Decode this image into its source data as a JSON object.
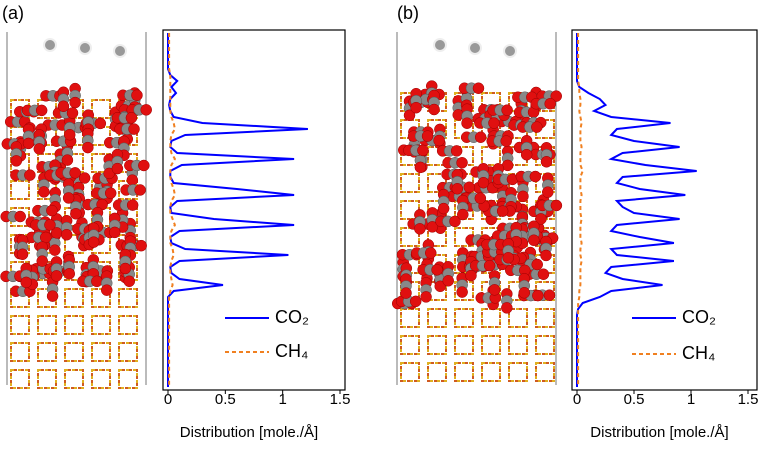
{
  "chart_data": [
    {
      "type": "line",
      "label": "(a)",
      "xlabel": "Distribution  [mole./Å]",
      "xlim": [
        0,
        1.5
      ],
      "xticks": [
        0,
        0.5,
        1,
        1.5
      ],
      "series": [
        {
          "name": "CO₂",
          "color": "#0000ff",
          "linestyle": "solid",
          "values": [
            0,
            0,
            0,
            0,
            0,
            0,
            0,
            0.02,
            0.08,
            0.03,
            0.07,
            0.02,
            0.01,
            0.02,
            0.05,
            0.3,
            1.22,
            0.15,
            0.03,
            0.02,
            0.08,
            1.1,
            0.12,
            0.02,
            0.02,
            0.05,
            0.6,
            1.1,
            0.08,
            0.02,
            0.03,
            0.4,
            1.1,
            0.1,
            0.02,
            0.03,
            0.15,
            1.05,
            0.1,
            0.02,
            0.03,
            0.1,
            0.48,
            0.05,
            0,
            0,
            0,
            0,
            0,
            0,
            0,
            0,
            0,
            0,
            0,
            0,
            0,
            0,
            0,
            0
          ]
        },
        {
          "name": "CH₄",
          "color": "#f08020",
          "linestyle": "dashed",
          "values": [
            0.01,
            0.01,
            0.01,
            0.01,
            0.01,
            0.01,
            0.01,
            0.02,
            0.02,
            0.02,
            0.02,
            0.02,
            0.02,
            0.02,
            0.03,
            0.05,
            0.06,
            0.03,
            0.02,
            0.02,
            0.03,
            0.06,
            0.03,
            0.02,
            0.02,
            0.03,
            0.05,
            0.06,
            0.03,
            0.02,
            0.02,
            0.04,
            0.06,
            0.03,
            0.02,
            0.02,
            0.04,
            0.05,
            0.03,
            0.02,
            0.02,
            0.03,
            0.04,
            0.02,
            0.01,
            0.01,
            0.01,
            0.01,
            0.01,
            0.01,
            0.01,
            0.01,
            0.01,
            0.01,
            0.01,
            0.01,
            0.01,
            0.01,
            0.01,
            0.01
          ]
        }
      ]
    },
    {
      "type": "line",
      "label": "(b)",
      "xlabel": "Distribution  [mole./Å]",
      "xlim": [
        0,
        1.5
      ],
      "xticks": [
        0,
        0.5,
        1,
        1.5
      ],
      "series": [
        {
          "name": "CO₂",
          "color": "#0000ff",
          "linestyle": "solid",
          "values": [
            0,
            0,
            0,
            0,
            0,
            0,
            0,
            0,
            0,
            0.02,
            0.1,
            0.2,
            0.25,
            0.15,
            0.3,
            0.82,
            0.35,
            0.3,
            0.5,
            0.9,
            0.4,
            0.3,
            0.6,
            1.05,
            0.4,
            0.35,
            0.55,
            0.95,
            0.35,
            0.4,
            0.5,
            0.9,
            0.35,
            0.3,
            0.55,
            0.85,
            0.3,
            0.35,
            0.85,
            0.3,
            0.25,
            0.4,
            0.75,
            0.3,
            0.2,
            0.05,
            0.01,
            0,
            0,
            0,
            0,
            0,
            0,
            0,
            0,
            0,
            0,
            0,
            0,
            0
          ]
        },
        {
          "name": "CH₄",
          "color": "#f08020",
          "linestyle": "dashed",
          "values": [
            0.01,
            0.01,
            0.01,
            0.01,
            0.01,
            0.01,
            0.01,
            0.01,
            0.01,
            0.02,
            0.02,
            0.03,
            0.03,
            0.02,
            0.03,
            0.04,
            0.03,
            0.03,
            0.03,
            0.04,
            0.03,
            0.03,
            0.03,
            0.05,
            0.03,
            0.03,
            0.03,
            0.04,
            0.03,
            0.03,
            0.03,
            0.04,
            0.03,
            0.03,
            0.03,
            0.04,
            0.03,
            0.03,
            0.04,
            0.03,
            0.03,
            0.03,
            0.03,
            0.02,
            0.02,
            0.01,
            0.01,
            0.01,
            0.01,
            0.01,
            0.01,
            0.01,
            0.01,
            0.01,
            0.01,
            0.01,
            0.01,
            0.01,
            0.01,
            0.01
          ]
        }
      ]
    }
  ]
}
